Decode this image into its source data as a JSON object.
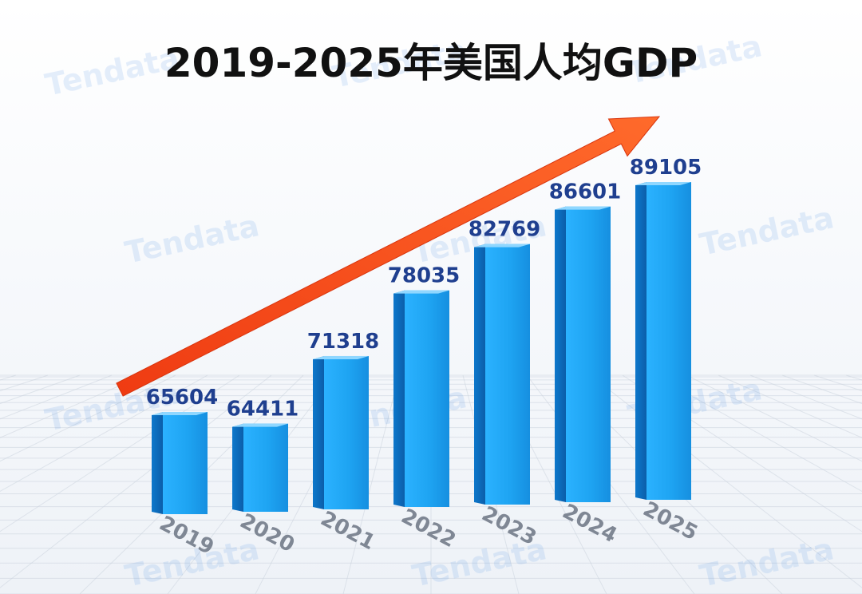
{
  "chart_data": {
    "type": "bar",
    "title": "2019-2025年美国人均GDP",
    "categories": [
      "2019",
      "2020",
      "2021",
      "2022",
      "2023",
      "2024",
      "2025"
    ],
    "values": [
      65604,
      64411,
      71318,
      78035,
      82769,
      86601,
      89105
    ],
    "value_labels": [
      "65604",
      "64411",
      "71318",
      "78035",
      "82769",
      "86601",
      "89105"
    ],
    "xlabel": "",
    "ylabel": "",
    "grid": true,
    "legend": "none",
    "trend_arrow": true
  },
  "watermark": {
    "text": "Tendata"
  },
  "colors": {
    "bar_front": "#1ea4f2",
    "bar_side": "#0d78cc",
    "bar_top": "#8fd7ff",
    "arrow": "#f24a1a",
    "title": "#111111",
    "value_label": "#1f3f8f",
    "tick_label": "#7f8794"
  }
}
